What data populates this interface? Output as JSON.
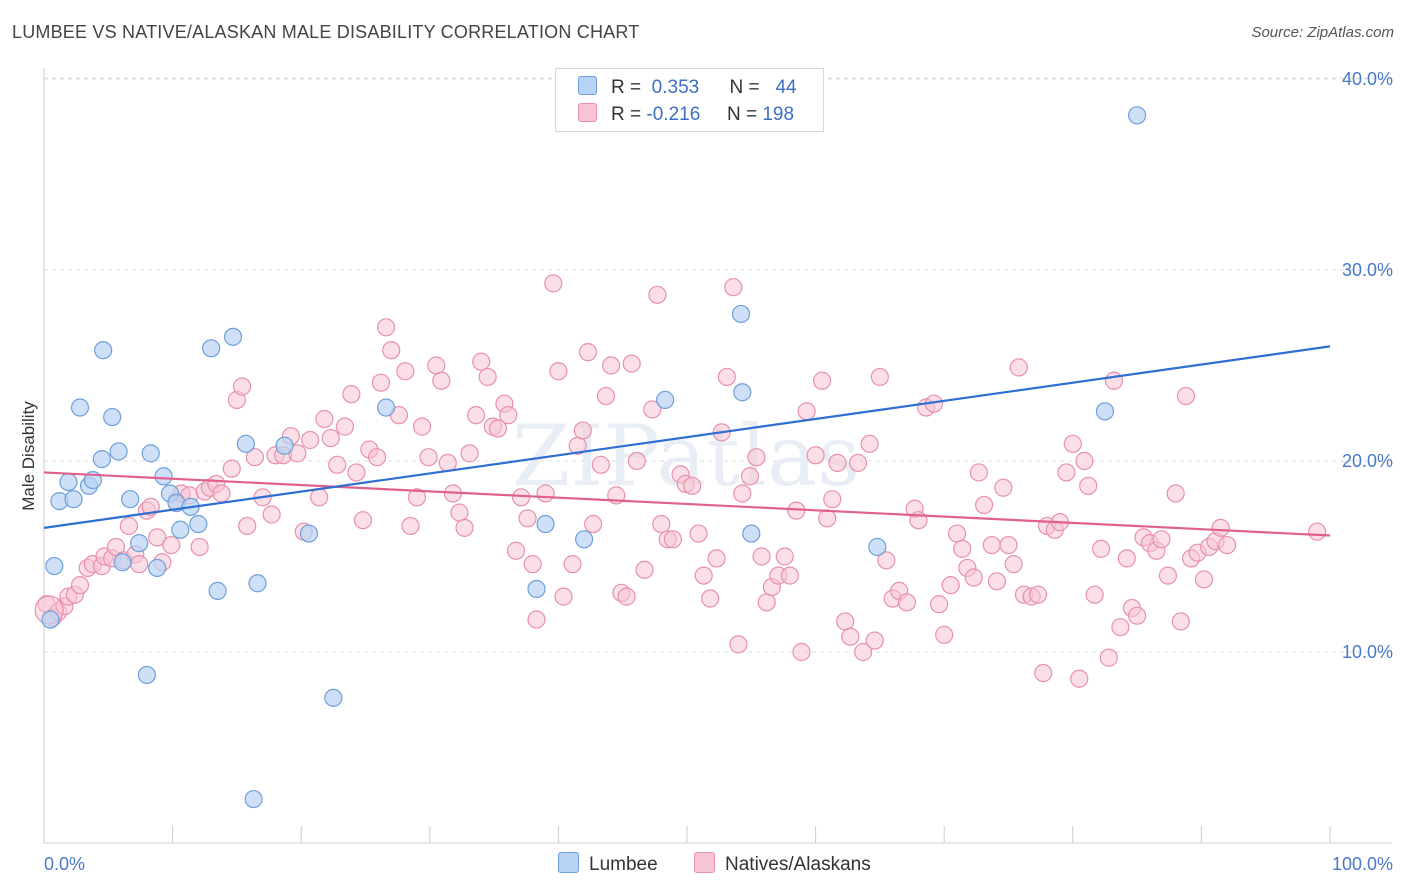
{
  "header": {
    "title": "LUMBEE VS NATIVE/ALASKAN MALE DISABILITY CORRELATION CHART",
    "source": "Source: ZipAtlas.com"
  },
  "legend": {
    "rows": [
      {
        "r_label": "R =",
        "r_value": "0.353",
        "n_label": "N =",
        "n_value": "44"
      },
      {
        "r_label": "R =",
        "r_value": "-0.216",
        "n_label": "N =",
        "n_value": "198"
      }
    ]
  },
  "bottom_legend": {
    "lumbee": "Lumbee",
    "natives": "Natives/Alaskans"
  },
  "watermark": "ZIPatlas",
  "colors": {
    "lumbee_fill": "#b8d3f5",
    "lumbee_stroke": "#6f9fd9",
    "lumbee_line": "#2e6fd1",
    "natives_fill": "#f7c4d4",
    "natives_stroke": "#e890ad",
    "natives_line": "#e0608e",
    "tick_text": "#4a78c9",
    "grid": "#dddddd"
  },
  "chart_data": {
    "type": "scatter",
    "title": "LUMBEE VS NATIVE/ALASKAN MALE DISABILITY CORRELATION CHART",
    "xlabel": "",
    "ylabel": "Male Disability",
    "xlim": [
      0,
      100
    ],
    "ylim": [
      0,
      42
    ],
    "x_tick_labels": [
      "0.0%",
      "100.0%"
    ],
    "y_ticks": [
      10,
      20,
      30,
      40
    ],
    "y_tick_labels": [
      "10.0%",
      "20.0%",
      "30.0%",
      "40.0%"
    ],
    "grid": true,
    "legend_position": "top-center",
    "series": [
      {
        "name": "Lumbee",
        "r": 0.353,
        "n": 44,
        "trend": {
          "x": [
            0,
            100
          ],
          "y": [
            16.5,
            26.0
          ]
        },
        "points": [
          [
            0.5,
            11.7
          ],
          [
            0.8,
            14.5
          ],
          [
            1.2,
            17.9
          ],
          [
            1.9,
            18.9
          ],
          [
            2.3,
            18.0
          ],
          [
            2.8,
            22.8
          ],
          [
            3.5,
            18.7
          ],
          [
            3.8,
            19.0
          ],
          [
            4.5,
            20.1
          ],
          [
            4.6,
            25.8
          ],
          [
            5.3,
            22.3
          ],
          [
            5.8,
            20.5
          ],
          [
            6.1,
            14.7
          ],
          [
            6.7,
            18.0
          ],
          [
            7.4,
            15.7
          ],
          [
            8.0,
            8.8
          ],
          [
            8.3,
            20.4
          ],
          [
            8.8,
            14.4
          ],
          [
            9.3,
            19.2
          ],
          [
            9.8,
            18.3
          ],
          [
            10.3,
            17.8
          ],
          [
            10.6,
            16.4
          ],
          [
            11.4,
            17.6
          ],
          [
            12.0,
            16.7
          ],
          [
            13.0,
            25.9
          ],
          [
            13.5,
            13.2
          ],
          [
            14.7,
            26.5
          ],
          [
            15.7,
            20.9
          ],
          [
            16.3,
            2.3
          ],
          [
            16.6,
            13.6
          ],
          [
            18.7,
            20.8
          ],
          [
            20.6,
            16.2
          ],
          [
            22.5,
            7.6
          ],
          [
            26.6,
            22.8
          ],
          [
            38.3,
            13.3
          ],
          [
            39.0,
            16.7
          ],
          [
            42.0,
            15.9
          ],
          [
            48.3,
            23.2
          ],
          [
            54.2,
            27.7
          ],
          [
            54.3,
            23.6
          ],
          [
            55.0,
            16.2
          ],
          [
            64.8,
            15.5
          ],
          [
            82.5,
            22.6
          ],
          [
            85.0,
            38.1
          ]
        ]
      },
      {
        "name": "Natives/Alaskans",
        "r": -0.216,
        "n": 198,
        "trend": {
          "x": [
            0,
            100
          ],
          "y": [
            19.4,
            16.1
          ]
        },
        "points": [
          [
            0.2,
            12.5
          ],
          [
            0.7,
            11.8
          ],
          [
            1.1,
            12.1
          ],
          [
            1.6,
            12.4
          ],
          [
            1.9,
            12.9
          ],
          [
            2.4,
            13.0
          ],
          [
            2.8,
            13.5
          ],
          [
            3.4,
            14.4
          ],
          [
            3.8,
            14.6
          ],
          [
            4.5,
            14.5
          ],
          [
            4.7,
            15.0
          ],
          [
            5.3,
            14.9
          ],
          [
            5.6,
            15.5
          ],
          [
            6.2,
            14.8
          ],
          [
            6.6,
            16.6
          ],
          [
            7.1,
            15.1
          ],
          [
            7.4,
            14.6
          ],
          [
            8.0,
            17.4
          ],
          [
            8.3,
            17.6
          ],
          [
            8.8,
            16.0
          ],
          [
            9.2,
            14.7
          ],
          [
            9.9,
            15.6
          ],
          [
            10.3,
            17.9
          ],
          [
            10.7,
            18.3
          ],
          [
            11.3,
            18.2
          ],
          [
            12.1,
            15.5
          ],
          [
            12.5,
            18.4
          ],
          [
            12.9,
            18.6
          ],
          [
            13.4,
            18.8
          ],
          [
            13.8,
            18.3
          ],
          [
            14.6,
            19.6
          ],
          [
            15.0,
            23.2
          ],
          [
            15.4,
            23.9
          ],
          [
            15.8,
            16.6
          ],
          [
            16.4,
            20.2
          ],
          [
            17.0,
            18.1
          ],
          [
            17.7,
            17.2
          ],
          [
            18.0,
            20.3
          ],
          [
            18.6,
            20.3
          ],
          [
            19.2,
            21.3
          ],
          [
            19.7,
            20.4
          ],
          [
            20.2,
            16.3
          ],
          [
            20.7,
            21.1
          ],
          [
            21.4,
            18.1
          ],
          [
            21.8,
            22.2
          ],
          [
            22.3,
            21.2
          ],
          [
            22.8,
            19.8
          ],
          [
            23.4,
            21.8
          ],
          [
            23.9,
            23.5
          ],
          [
            24.3,
            19.4
          ],
          [
            24.8,
            16.9
          ],
          [
            25.3,
            20.6
          ],
          [
            25.9,
            20.2
          ],
          [
            26.2,
            24.1
          ],
          [
            26.6,
            27.0
          ],
          [
            27.0,
            25.8
          ],
          [
            27.6,
            22.4
          ],
          [
            28.1,
            24.7
          ],
          [
            28.5,
            16.6
          ],
          [
            29.0,
            18.1
          ],
          [
            29.4,
            21.8
          ],
          [
            29.9,
            20.2
          ],
          [
            30.5,
            25.0
          ],
          [
            30.9,
            24.2
          ],
          [
            31.4,
            19.9
          ],
          [
            31.8,
            18.3
          ],
          [
            32.3,
            17.3
          ],
          [
            32.7,
            16.5
          ],
          [
            33.1,
            20.4
          ],
          [
            33.6,
            22.4
          ],
          [
            34.0,
            25.2
          ],
          [
            34.5,
            24.4
          ],
          [
            34.9,
            21.8
          ],
          [
            35.3,
            21.7
          ],
          [
            35.8,
            23.0
          ],
          [
            36.1,
            22.4
          ],
          [
            36.7,
            15.3
          ],
          [
            37.1,
            18.1
          ],
          [
            37.6,
            17.0
          ],
          [
            38.0,
            14.6
          ],
          [
            38.3,
            11.7
          ],
          [
            39.0,
            18.3
          ],
          [
            39.6,
            29.3
          ],
          [
            40.0,
            24.7
          ],
          [
            40.4,
            12.9
          ],
          [
            41.1,
            14.6
          ],
          [
            41.5,
            20.8
          ],
          [
            41.9,
            21.6
          ],
          [
            42.3,
            25.7
          ],
          [
            42.7,
            16.7
          ],
          [
            43.3,
            19.8
          ],
          [
            43.7,
            23.4
          ],
          [
            44.1,
            25.0
          ],
          [
            44.5,
            18.2
          ],
          [
            44.9,
            13.1
          ],
          [
            45.3,
            12.9
          ],
          [
            45.7,
            25.1
          ],
          [
            46.1,
            20.0
          ],
          [
            46.7,
            14.3
          ],
          [
            47.3,
            22.7
          ],
          [
            47.7,
            28.7
          ],
          [
            48.0,
            16.7
          ],
          [
            48.5,
            15.9
          ],
          [
            48.9,
            15.9
          ],
          [
            49.5,
            19.3
          ],
          [
            49.9,
            18.8
          ],
          [
            50.4,
            18.7
          ],
          [
            50.9,
            16.2
          ],
          [
            51.3,
            14.0
          ],
          [
            51.8,
            12.8
          ],
          [
            52.3,
            14.9
          ],
          [
            52.7,
            21.5
          ],
          [
            53.1,
            24.4
          ],
          [
            53.6,
            29.1
          ],
          [
            54.0,
            10.4
          ],
          [
            54.3,
            18.3
          ],
          [
            54.9,
            19.2
          ],
          [
            55.4,
            20.2
          ],
          [
            55.8,
            15.0
          ],
          [
            56.2,
            12.6
          ],
          [
            56.6,
            13.4
          ],
          [
            57.1,
            14.0
          ],
          [
            57.6,
            15.0
          ],
          [
            58.0,
            14.0
          ],
          [
            58.5,
            17.4
          ],
          [
            58.9,
            10.0
          ],
          [
            59.3,
            22.6
          ],
          [
            60.0,
            20.3
          ],
          [
            60.5,
            24.2
          ],
          [
            60.9,
            17.0
          ],
          [
            61.3,
            18.0
          ],
          [
            61.7,
            19.9
          ],
          [
            62.3,
            11.6
          ],
          [
            62.7,
            10.8
          ],
          [
            63.3,
            19.9
          ],
          [
            63.7,
            10.0
          ],
          [
            64.2,
            20.9
          ],
          [
            64.6,
            10.6
          ],
          [
            65.0,
            24.4
          ],
          [
            65.5,
            14.8
          ],
          [
            66.0,
            12.8
          ],
          [
            66.5,
            13.2
          ],
          [
            67.1,
            12.6
          ],
          [
            67.7,
            17.5
          ],
          [
            68.0,
            16.9
          ],
          [
            68.6,
            22.8
          ],
          [
            69.2,
            23.0
          ],
          [
            69.6,
            12.5
          ],
          [
            70.0,
            10.9
          ],
          [
            70.5,
            13.5
          ],
          [
            71.0,
            16.2
          ],
          [
            71.4,
            15.4
          ],
          [
            71.8,
            14.4
          ],
          [
            72.3,
            13.9
          ],
          [
            72.7,
            19.4
          ],
          [
            73.1,
            17.7
          ],
          [
            73.7,
            15.6
          ],
          [
            74.1,
            13.7
          ],
          [
            74.6,
            18.6
          ],
          [
            75.0,
            15.6
          ],
          [
            75.4,
            14.6
          ],
          [
            75.8,
            24.9
          ],
          [
            76.2,
            13.0
          ],
          [
            76.8,
            12.9
          ],
          [
            77.3,
            13.0
          ],
          [
            77.7,
            8.9
          ],
          [
            78.0,
            16.6
          ],
          [
            78.6,
            16.4
          ],
          [
            79.0,
            16.8
          ],
          [
            79.5,
            19.4
          ],
          [
            80.0,
            20.9
          ],
          [
            80.5,
            8.6
          ],
          [
            80.9,
            20.0
          ],
          [
            81.2,
            18.7
          ],
          [
            81.7,
            13.0
          ],
          [
            82.2,
            15.4
          ],
          [
            82.8,
            9.7
          ],
          [
            83.2,
            24.2
          ],
          [
            83.7,
            11.3
          ],
          [
            84.2,
            14.9
          ],
          [
            84.6,
            12.3
          ],
          [
            85.0,
            11.9
          ],
          [
            85.5,
            16.0
          ],
          [
            86.0,
            15.7
          ],
          [
            86.5,
            15.3
          ],
          [
            86.9,
            15.9
          ],
          [
            87.4,
            14.0
          ],
          [
            88.0,
            18.3
          ],
          [
            88.4,
            11.6
          ],
          [
            88.8,
            23.4
          ],
          [
            89.2,
            14.9
          ],
          [
            89.7,
            15.2
          ],
          [
            90.2,
            13.8
          ],
          [
            90.6,
            15.5
          ],
          [
            91.1,
            15.8
          ],
          [
            91.5,
            16.5
          ],
          [
            92.0,
            15.6
          ],
          [
            99.0,
            16.3
          ]
        ]
      }
    ]
  }
}
